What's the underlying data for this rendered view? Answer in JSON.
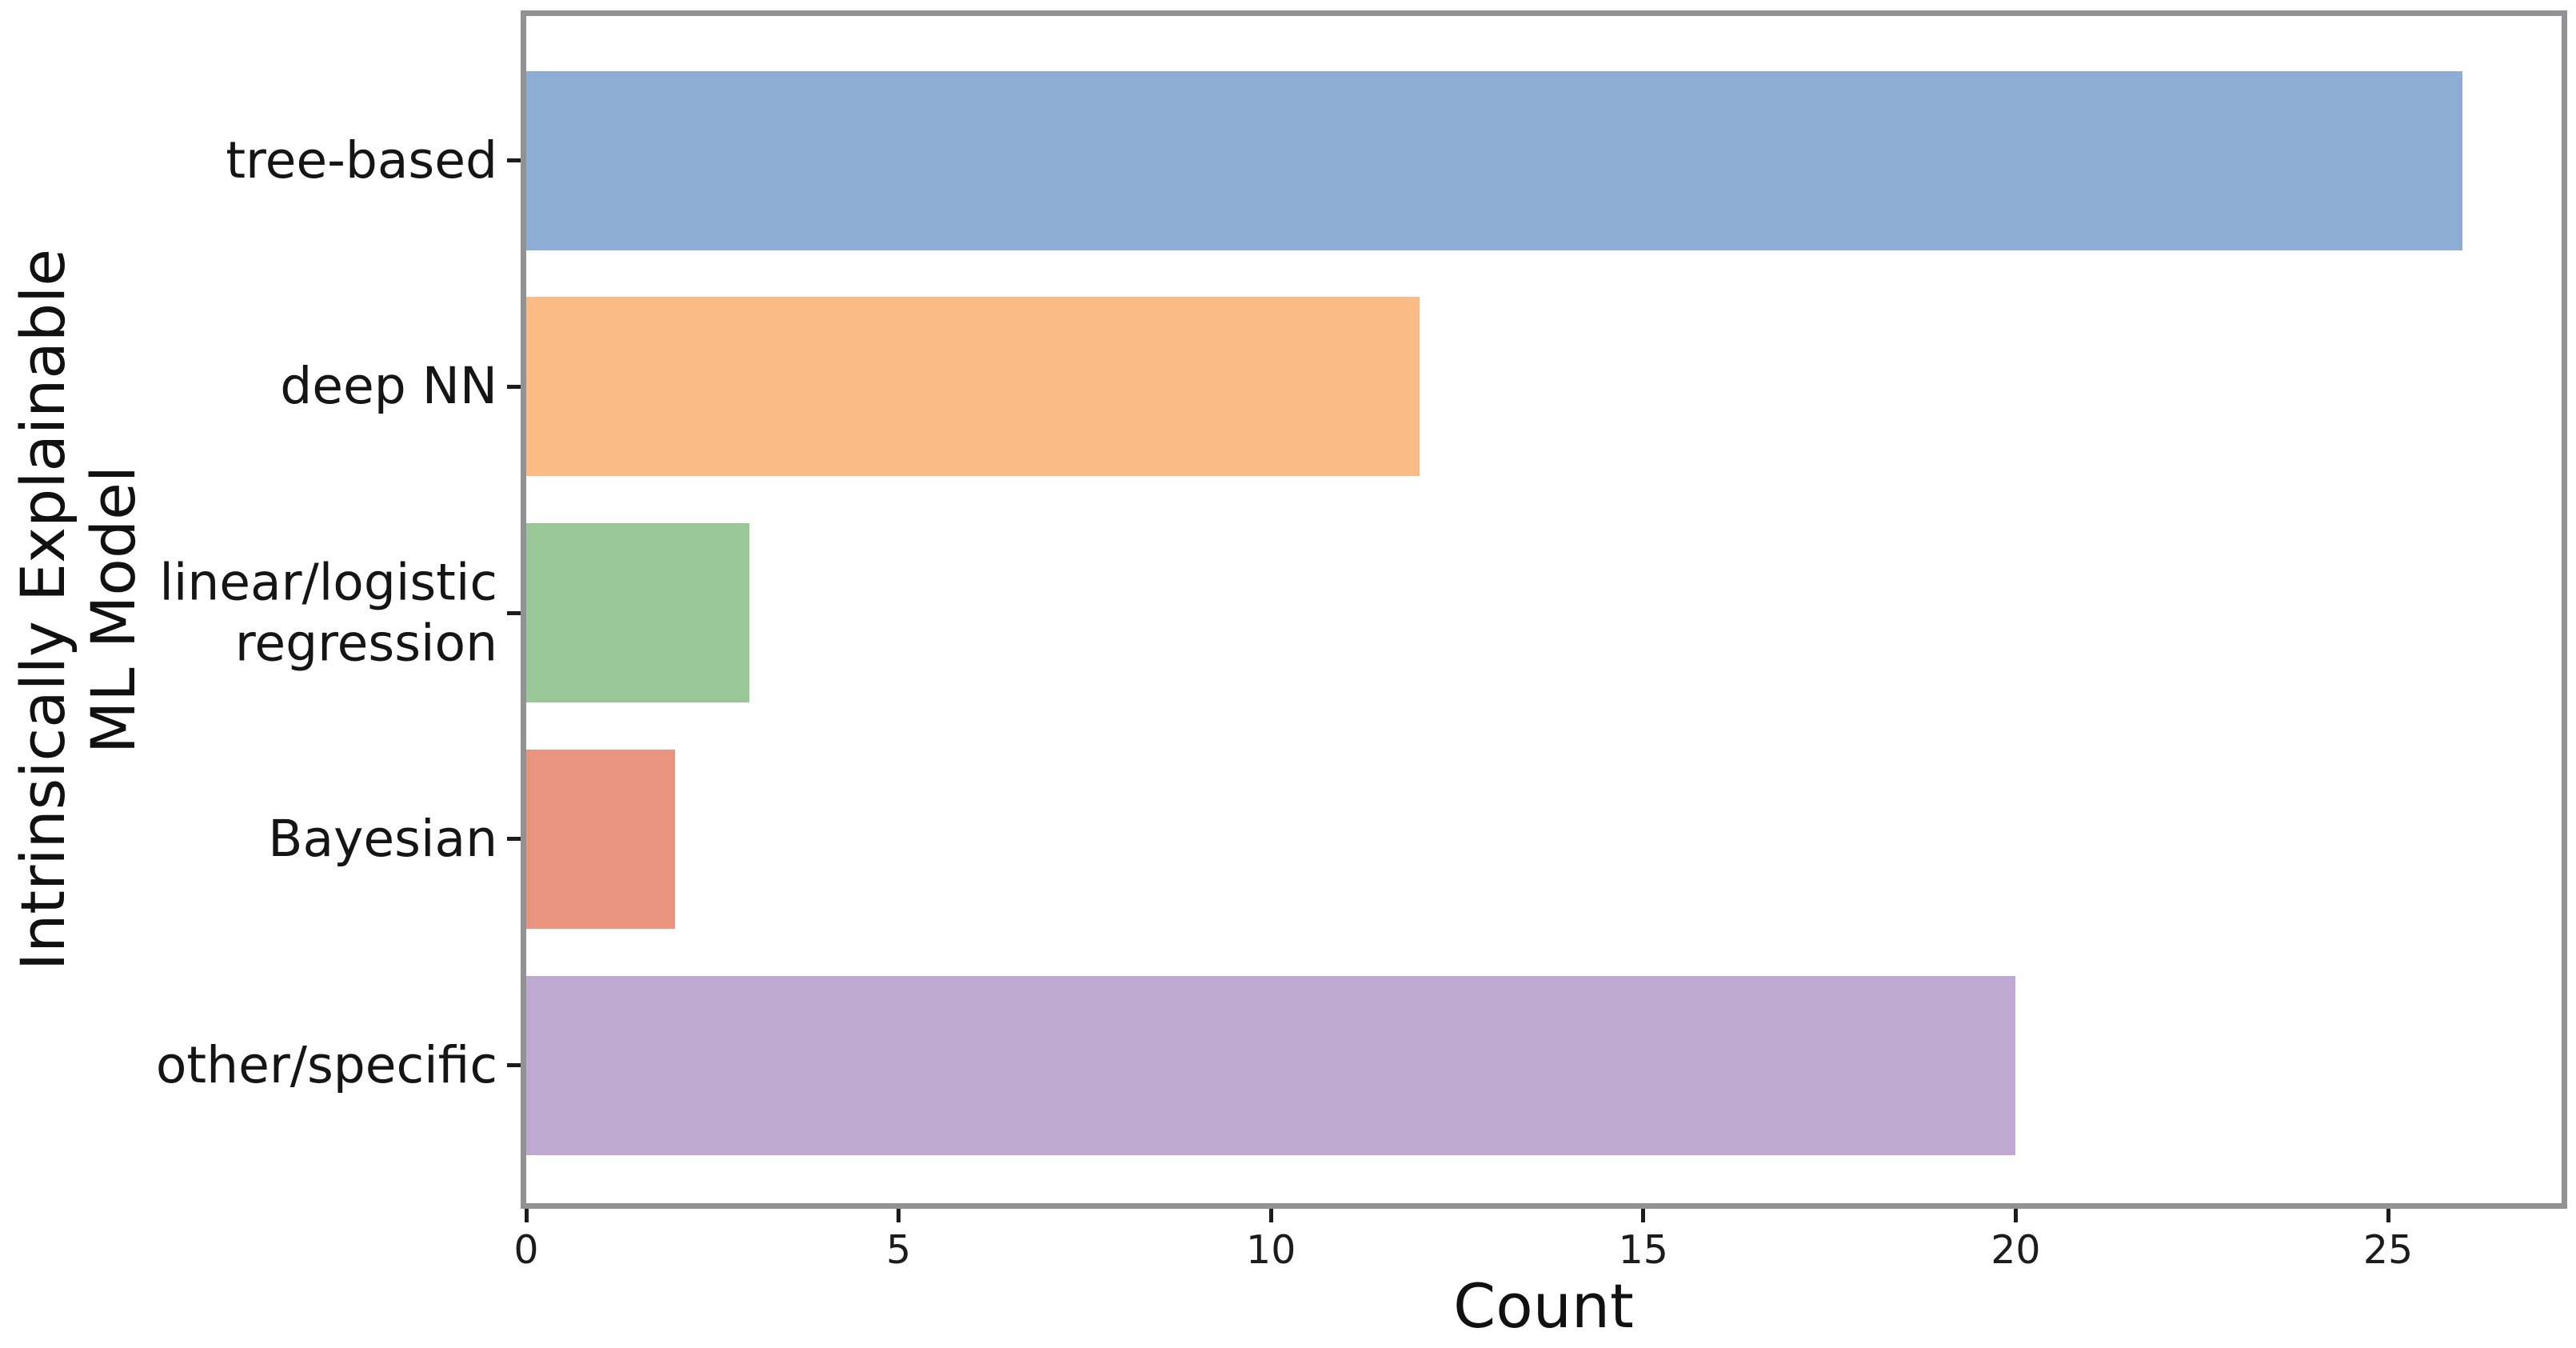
{
  "figure": {
    "background": "#ffffff",
    "spine_color": "#929296",
    "tick_color": "#1c1c1c",
    "text_color": "#151515"
  },
  "chart_data": {
    "type": "bar",
    "orientation": "horizontal",
    "title": "",
    "categories": [
      "tree-based",
      "deep NN",
      "linear/logistic\nregression",
      "Bayesian",
      "other/specific"
    ],
    "values": [
      26,
      12,
      3,
      2,
      20
    ],
    "bar_colors": [
      "#8EADD5",
      "#FBBB85",
      "#99C796",
      "#E8947E",
      "#BDA9D1"
    ],
    "xlabel": "Count",
    "ylabel": "Intrinsically Explainable ML Model",
    "ylabel_lines": [
      "Intrinsically Explainable",
      "ML Model"
    ],
    "xlim": [
      0,
      27.33
    ],
    "xticks": [
      0,
      5,
      10,
      15,
      20,
      25
    ],
    "grid": false,
    "legend": null
  }
}
